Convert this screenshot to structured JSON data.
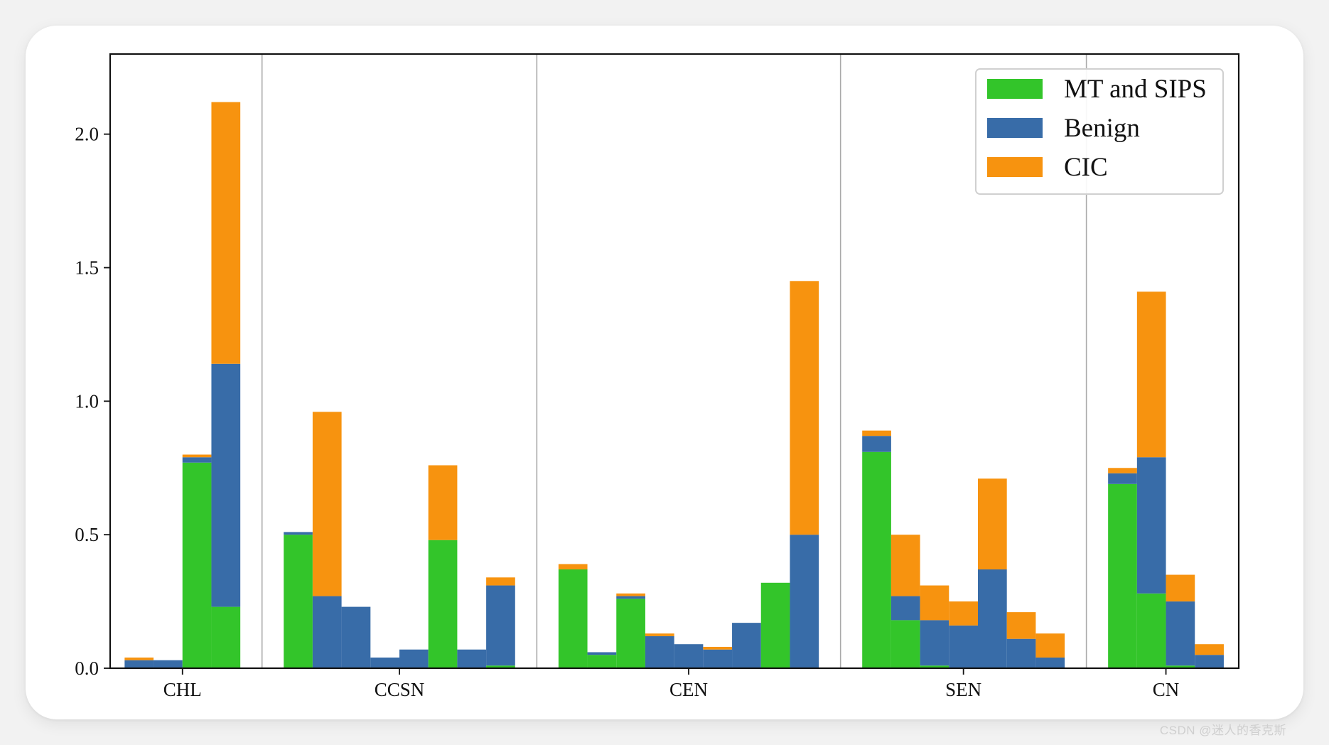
{
  "chart_data": {
    "type": "bar",
    "stacked": true,
    "ylim": [
      0,
      2.3
    ],
    "yticks": [
      "0.0",
      "0.5",
      "1.0",
      "1.5",
      "2.0"
    ],
    "ytick_values": [
      0,
      0.5,
      1.0,
      1.5,
      2.0
    ],
    "grid": false,
    "legend_position": "top-right",
    "colors": {
      "MT and SIPS": "#33c52a",
      "Benign": "#386ca8",
      "CIC": "#f7930f"
    },
    "groups": [
      {
        "label": "CHL",
        "n_bars": 4
      },
      {
        "label": "CCSN",
        "n_bars": 8
      },
      {
        "label": "CEN",
        "n_bars": 9
      },
      {
        "label": "SEN",
        "n_bars": 7
      },
      {
        "label": "CN",
        "n_bars": 4
      }
    ],
    "series": [
      {
        "name": "MT and SIPS",
        "values": [
          0.0,
          0.0,
          0.77,
          0.23,
          0.5,
          0.0,
          0.0,
          0.0,
          0.0,
          0.48,
          0.0,
          0.01,
          0.37,
          0.05,
          0.26,
          0.0,
          0.0,
          0.0,
          0.0,
          0.32,
          0.0,
          0.81,
          0.18,
          0.01,
          0.0,
          0.0,
          0.0,
          0.0,
          0.69,
          0.28,
          0.01,
          0.0
        ]
      },
      {
        "name": "Benign",
        "values": [
          0.03,
          0.03,
          0.02,
          0.91,
          0.01,
          0.27,
          0.23,
          0.04,
          0.07,
          0.0,
          0.07,
          0.3,
          0.0,
          0.01,
          0.01,
          0.12,
          0.09,
          0.07,
          0.17,
          0.0,
          0.5,
          0.06,
          0.09,
          0.17,
          0.16,
          0.37,
          0.11,
          0.04,
          0.04,
          0.51,
          0.24,
          0.05
        ]
      },
      {
        "name": "CIC",
        "values": [
          0.01,
          0.0,
          0.01,
          0.98,
          0.0,
          0.69,
          0.0,
          0.0,
          0.0,
          0.28,
          0.0,
          0.03,
          0.02,
          0.0,
          0.01,
          0.01,
          0.0,
          0.01,
          0.0,
          0.0,
          0.95,
          0.02,
          0.23,
          0.13,
          0.09,
          0.34,
          0.1,
          0.09,
          0.02,
          0.62,
          0.1,
          0.04
        ]
      }
    ]
  },
  "watermark": "CSDN @迷人的香克斯"
}
